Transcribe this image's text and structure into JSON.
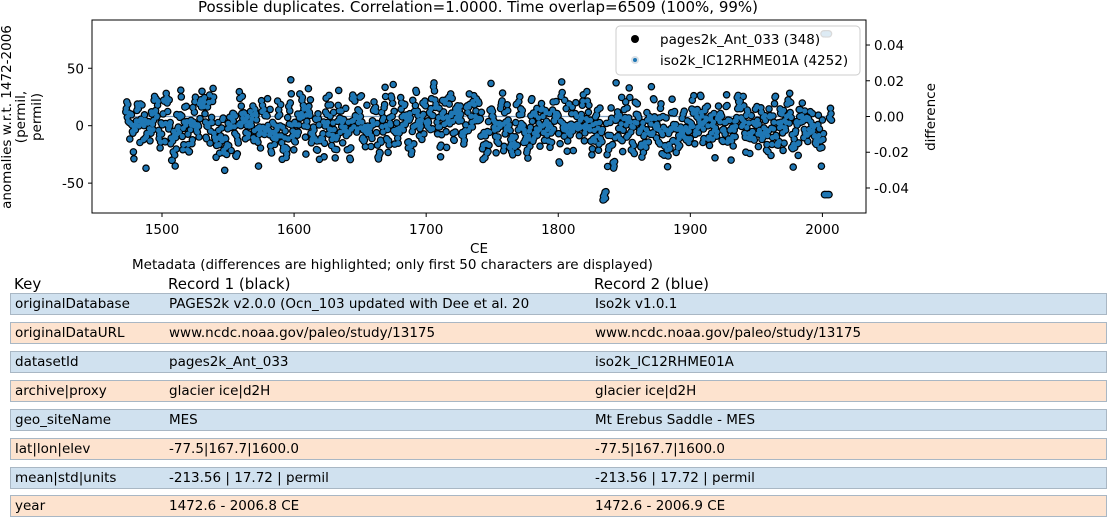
{
  "colors": {
    "record1": "#000000",
    "record2": "#1f77b4",
    "row_even": "#d0e1ef",
    "row_odd": "#fde3cf"
  },
  "chart_data": {
    "type": "scatter",
    "title": "Possible duplicates. Correlation=1.0000. Time overlap=6509 (100%, 99%)",
    "xlabel": "CE",
    "ylabel_line1": "anomalies w.r.t. 1472-2006",
    "ylabel_line2": "(permil,",
    "ylabel_line3": "permil)",
    "y2label": "difference",
    "xlim": [
      1447,
      2033
    ],
    "ylim": [
      -76,
      92
    ],
    "y2lim": [
      -0.054,
      0.054
    ],
    "xticks": [
      1500,
      1600,
      1700,
      1800,
      1900,
      2000
    ],
    "yticks": [
      -50,
      0,
      50
    ],
    "y2ticks": [
      "-0.04",
      "-0.02",
      "0.00",
      "0.02",
      "0.04"
    ],
    "y2tick_values": [
      -0.04,
      -0.02,
      0.0,
      0.02,
      0.04
    ],
    "legend_position": "top-right",
    "series": [
      {
        "name": "pages2k_Ant_033 (348)",
        "marker": "filled circle",
        "color": "#000000",
        "x_range": [
          1472.6,
          2006.8
        ]
      },
      {
        "name": "iso2k_IC12RHME01A (4252)",
        "marker": "small dot",
        "color": "#1f77b4",
        "x_range": [
          1472.6,
          2006.9
        ]
      }
    ],
    "difference_series": {
      "value": 0.0,
      "x_range": [
        1472.6,
        2006.9
      ],
      "color": "#7f9fbf"
    }
  },
  "metadata": {
    "caption": "Metadata (differences are highlighted; only first 50 characters are displayed)",
    "headers": {
      "key": "Key",
      "record1": "Record 1 (black)",
      "record2": "Record 2 (blue)"
    },
    "rows": [
      {
        "key": "originalDatabase",
        "r1": "PAGES2k v2.0.0 (Ocn_103 updated with Dee et al. 20",
        "r2": "Iso2k v1.0.1"
      },
      {
        "key": "originalDataURL",
        "r1": "www.ncdc.noaa.gov/paleo/study/13175",
        "r2": "www.ncdc.noaa.gov/paleo/study/13175"
      },
      {
        "key": "datasetId",
        "r1": "pages2k_Ant_033",
        "r2": "iso2k_IC12RHME01A"
      },
      {
        "key": "archive|proxy",
        "r1": "glacier ice|d2H",
        "r2": "glacier ice|d2H"
      },
      {
        "key": "geo_siteName",
        "r1": "MES",
        "r2": "Mt Erebus Saddle - MES"
      },
      {
        "key": "lat|lon|elev",
        "r1": "-77.5|167.7|1600.0",
        "r2": "-77.5|167.7|1600.0"
      },
      {
        "key": "mean|std|units",
        "r1": "-213.56 | 17.72 | permil",
        "r2": "-213.56 | 17.72 | permil"
      },
      {
        "key": "year",
        "r1": "1472.6 - 2006.8 CE",
        "r2": "1472.6 - 2006.9 CE"
      }
    ]
  }
}
